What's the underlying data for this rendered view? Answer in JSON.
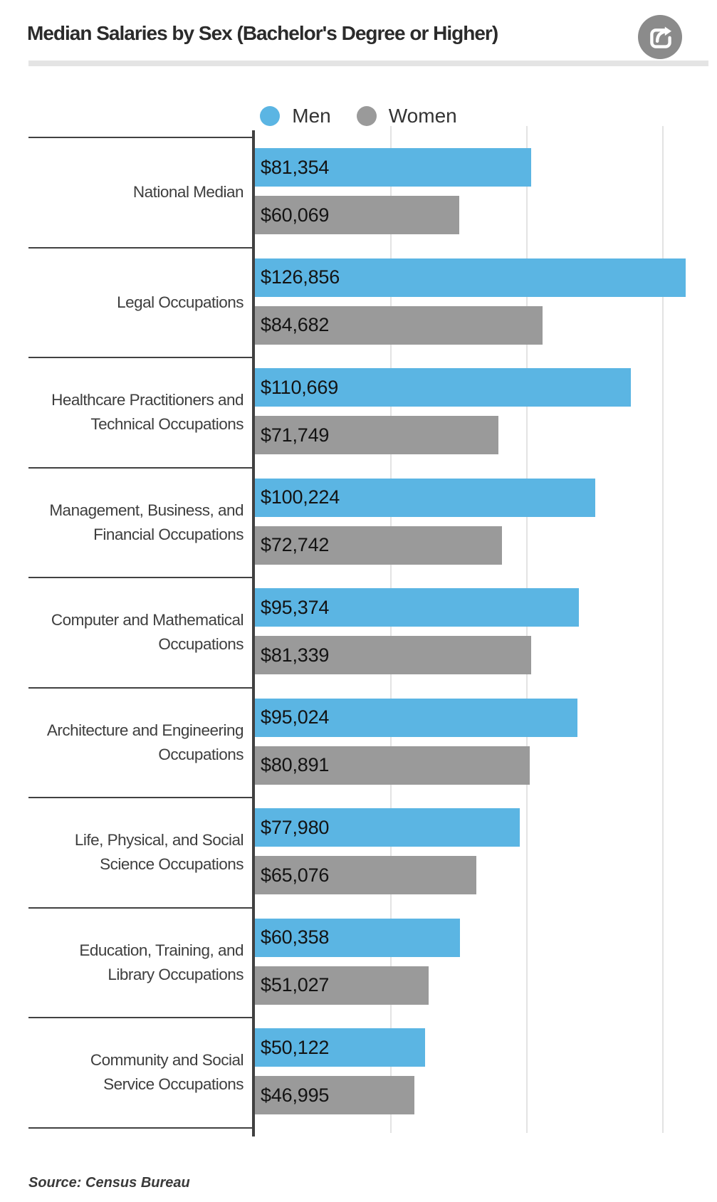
{
  "header": {
    "title": "Median Salaries by Sex (Bachelor's Degree or Higher)"
  },
  "chart_data": {
    "type": "bar",
    "orientation": "horizontal",
    "title": "Median Salaries by Sex (Bachelor's Degree or Higher)",
    "categories": [
      "National Median",
      "Legal Occupations",
      "Healthcare Practitioners and\nTechnical Occupations",
      "Management, Business, and\nFinancial Occupations",
      "Computer and Mathematical\nOccupations",
      "Architecture and Engineering\nOccupations",
      "Life, Physical, and Social\nScience Occupations",
      "Education, Training, and\nLibrary Occupations",
      "Community and Social\nService Occupations"
    ],
    "series": [
      {
        "name": "Men",
        "color": "#5bb5e3",
        "values": [
          81354,
          126856,
          110669,
          100224,
          95374,
          95024,
          77980,
          60358,
          50122
        ]
      },
      {
        "name": "Women",
        "color": "#9a9a9a",
        "values": [
          60069,
          84682,
          71749,
          72742,
          81339,
          80891,
          65076,
          51027,
          46995
        ]
      }
    ],
    "value_prefix": "$",
    "value_labels": "inside-start",
    "axis_max": 136000,
    "gridlines": [
      40000,
      80000,
      120000
    ],
    "grid": true,
    "legend_position": "top"
  },
  "source": {
    "text": "Source: Census Bureau"
  }
}
